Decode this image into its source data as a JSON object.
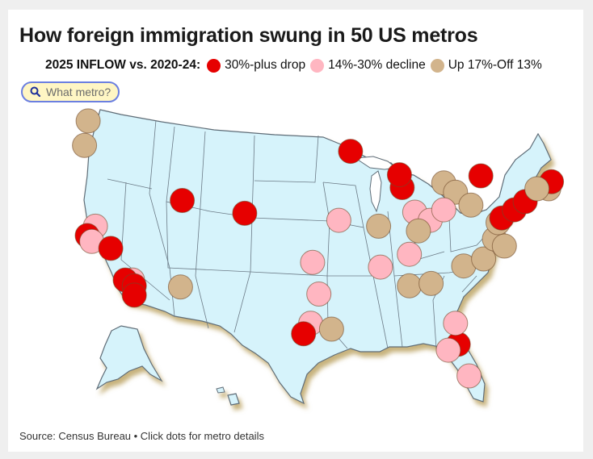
{
  "title": "How foreign immigration swung in 50 US metros",
  "legend": {
    "title": "2025 INFLOW vs. 2020-24:",
    "items": [
      {
        "label": "30%-plus drop",
        "color": "#e60000"
      },
      {
        "label": "14%-30% decline",
        "color": "#ffb6c1"
      },
      {
        "label": "Up 17%-Off 13%",
        "color": "#d2b48c"
      }
    ]
  },
  "search": {
    "placeholder": "What metro?",
    "icon": "search-icon"
  },
  "source": "Source: Census Bureau • Click dots for metro details",
  "colors": {
    "land": "#d6f3fb",
    "border": "#5f6d78",
    "drop": "#e60000",
    "decline": "#ffb6c1",
    "mixed": "#d2b48c"
  },
  "metros": [
    {
      "lon": -122.3,
      "lat": 47.6,
      "cat": "mixed"
    },
    {
      "lon": -122.7,
      "lat": 45.5,
      "cat": "mixed"
    },
    {
      "lon": -121.5,
      "lat": 38.6,
      "cat": "decline"
    },
    {
      "lon": -122.4,
      "lat": 37.8,
      "cat": "drop"
    },
    {
      "lon": -121.9,
      "lat": 37.3,
      "cat": "decline"
    },
    {
      "lon": -119.8,
      "lat": 36.7,
      "cat": "drop"
    },
    {
      "lon": -117.4,
      "lat": 34.0,
      "cat": "decline"
    },
    {
      "lon": -118.2,
      "lat": 34.0,
      "cat": "drop"
    },
    {
      "lon": -117.2,
      "lat": 33.5,
      "cat": "drop"
    },
    {
      "lon": -117.2,
      "lat": 32.7,
      "cat": "drop"
    },
    {
      "lon": -112.1,
      "lat": 33.4,
      "cat": "mixed"
    },
    {
      "lon": -111.9,
      "lat": 40.8,
      "cat": "drop"
    },
    {
      "lon": -105.0,
      "lat": 39.7,
      "cat": "drop"
    },
    {
      "lon": -93.3,
      "lat": 45.0,
      "cat": "drop"
    },
    {
      "lon": -87.6,
      "lat": 41.9,
      "cat": "drop"
    },
    {
      "lon": -87.9,
      "lat": 43.0,
      "cat": "drop"
    },
    {
      "lon": -83.0,
      "lat": 42.3,
      "cat": "mixed"
    },
    {
      "lon": -81.7,
      "lat": 41.5,
      "cat": "mixed"
    },
    {
      "lon": -80.0,
      "lat": 40.4,
      "cat": "mixed"
    },
    {
      "lon": -86.2,
      "lat": 39.8,
      "cat": "decline"
    },
    {
      "lon": -84.5,
      "lat": 39.1,
      "cat": "decline"
    },
    {
      "lon": -83.0,
      "lat": 40.0,
      "cat": "decline"
    },
    {
      "lon": -94.6,
      "lat": 39.1,
      "cat": "decline"
    },
    {
      "lon": -90.2,
      "lat": 38.6,
      "cat": "mixed"
    },
    {
      "lon": -85.8,
      "lat": 38.2,
      "cat": "mixed"
    },
    {
      "lon": -97.5,
      "lat": 35.5,
      "cat": "decline"
    },
    {
      "lon": -96.8,
      "lat": 32.8,
      "cat": "decline"
    },
    {
      "lon": -97.7,
      "lat": 30.3,
      "cat": "decline"
    },
    {
      "lon": -98.5,
      "lat": 29.4,
      "cat": "drop"
    },
    {
      "lon": -95.4,
      "lat": 29.8,
      "cat": "mixed"
    },
    {
      "lon": -90.0,
      "lat": 35.1,
      "cat": "decline"
    },
    {
      "lon": -86.8,
      "lat": 36.2,
      "cat": "decline"
    },
    {
      "lon": -86.8,
      "lat": 33.5,
      "cat": "mixed"
    },
    {
      "lon": -84.4,
      "lat": 33.7,
      "cat": "mixed"
    },
    {
      "lon": -80.8,
      "lat": 35.2,
      "cat": "mixed"
    },
    {
      "lon": -78.6,
      "lat": 35.8,
      "cat": "mixed"
    },
    {
      "lon": -77.4,
      "lat": 37.5,
      "cat": "mixed"
    },
    {
      "lon": -76.3,
      "lat": 36.9,
      "cat": "mixed"
    },
    {
      "lon": -77.0,
      "lat": 38.9,
      "cat": "mixed"
    },
    {
      "lon": -76.6,
      "lat": 39.3,
      "cat": "drop"
    },
    {
      "lon": -75.2,
      "lat": 40.0,
      "cat": "drop"
    },
    {
      "lon": -74.0,
      "lat": 40.7,
      "cat": "drop"
    },
    {
      "lon": -78.9,
      "lat": 42.9,
      "cat": "drop"
    },
    {
      "lon": -71.4,
      "lat": 41.8,
      "cat": "mixed"
    },
    {
      "lon": -71.1,
      "lat": 42.4,
      "cat": "drop"
    },
    {
      "lon": -72.7,
      "lat": 41.8,
      "cat": "mixed"
    },
    {
      "lon": -81.4,
      "lat": 28.5,
      "cat": "drop"
    },
    {
      "lon": -82.5,
      "lat": 28.0,
      "cat": "decline"
    },
    {
      "lon": -81.7,
      "lat": 30.3,
      "cat": "decline"
    },
    {
      "lon": -80.2,
      "lat": 25.8,
      "cat": "decline"
    }
  ]
}
